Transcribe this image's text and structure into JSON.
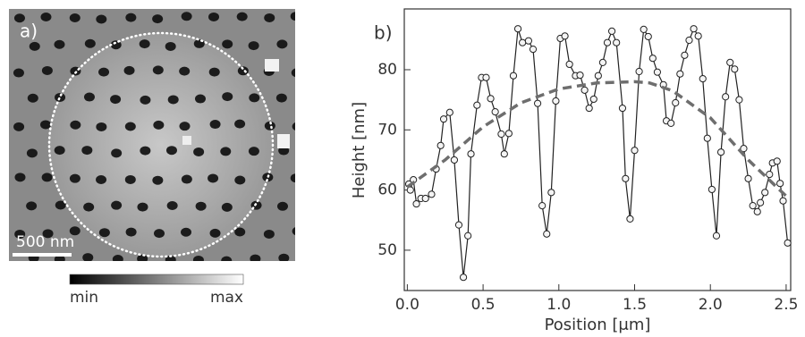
{
  "image": {
    "panel_label": "a)",
    "scale_bar": "500 nm",
    "colorbar_min": "min",
    "colorbar_max": "max"
  },
  "chart_data": {
    "type": "line",
    "panel_label": "b)",
    "x_label": "Position [μm]",
    "y_label": "Height [nm]",
    "xlim": [
      -0.02,
      2.53
    ],
    "ylim": [
      43.3,
      90.1
    ],
    "xticks": [
      {
        "value": 0,
        "label": "0.0"
      },
      0.5,
      {
        "value": 1,
        "label": "1.0"
      },
      1.5,
      {
        "value": 2,
        "label": "2.0"
      },
      2.5
    ],
    "yticks": [
      50,
      60,
      70,
      80
    ],
    "series": [
      {
        "color": "#222222",
        "marker": "circle",
        "x": [
          0.01,
          0.02,
          0.04,
          0.06,
          0.09,
          0.12,
          0.16,
          0.19,
          0.22,
          0.24,
          0.28,
          0.31,
          0.34,
          0.37,
          0.4,
          0.42,
          0.46,
          0.49,
          0.52,
          0.55,
          0.58,
          0.62,
          0.64,
          0.67,
          0.7,
          0.73,
          0.76,
          0.8,
          0.83,
          0.86,
          0.89,
          0.92,
          0.95,
          0.98,
          1.01,
          1.04,
          1.07,
          1.11,
          1.14,
          1.17,
          1.2,
          1.23,
          1.26,
          1.29,
          1.32,
          1.35,
          1.38,
          1.42,
          1.44,
          1.47,
          1.5,
          1.53,
          1.56,
          1.59,
          1.62,
          1.65,
          1.69,
          1.71,
          1.74,
          1.77,
          1.8,
          1.83,
          1.86,
          1.89,
          1.92,
          1.95,
          1.98,
          2.01,
          2.04,
          2.07,
          2.1,
          2.13,
          2.16,
          2.19,
          2.22,
          2.25,
          2.28,
          2.31,
          2.33,
          2.36,
          2.39,
          2.41,
          2.44,
          2.46,
          2.48,
          2.51
        ],
        "values": [
          61,
          60,
          61.7,
          57.7,
          58.6,
          58.6,
          59.3,
          63.5,
          67.4,
          71.8,
          72.9,
          65,
          54.2,
          45.5,
          52.4,
          66,
          74.1,
          78.7,
          78.7,
          75.2,
          73,
          69.3,
          66,
          69.4,
          79,
          86.8,
          84.5,
          84.8,
          83.4,
          74.4,
          57.4,
          52.7,
          59.6,
          74.8,
          85.2,
          85.6,
          80.9,
          79,
          79.1,
          76.6,
          73.6,
          75.1,
          79,
          81.2,
          84.5,
          86.4,
          84.5,
          73.6,
          61.9,
          55.2,
          66.6,
          79.7,
          86.7,
          85.5,
          81.9,
          79.6,
          77.5,
          71.5,
          71.1,
          74.5,
          79.3,
          82.4,
          84.9,
          86.8,
          85.6,
          78.5,
          68.6,
          60.1,
          52.4,
          66.3,
          75.5,
          81.2,
          80.1,
          75,
          66.9,
          61.9,
          57.4,
          56.4,
          57.9,
          59.6,
          62.6,
          64.5,
          64.8,
          61.1,
          58.2,
          51.2
        ]
      },
      {
        "color": "#6e6e6e",
        "dashed": true,
        "x": [
          0,
          0.25,
          0.5,
          0.75,
          1.0,
          1.25,
          1.5,
          1.6,
          1.75,
          2.0,
          2.25,
          2.5
        ],
        "values": [
          60.5,
          65,
          70.5,
          74.5,
          76.8,
          77.8,
          78,
          77.8,
          76.5,
          72,
          65,
          59
        ]
      }
    ]
  }
}
